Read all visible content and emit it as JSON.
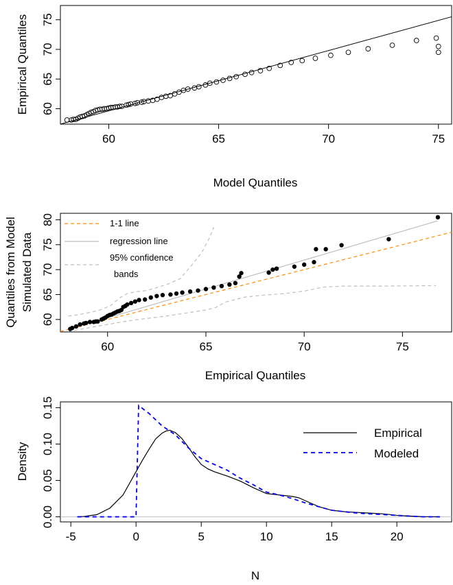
{
  "chart_data": [
    {
      "type": "scatter",
      "xlabel": "Model Quantiles",
      "ylabel": "Empirical Quantiles",
      "xlim": [
        57.8,
        75.6
      ],
      "ylim": [
        57.4,
        77.4
      ],
      "xticks": [
        60,
        65,
        70,
        75
      ],
      "yticks": [
        60,
        65,
        70,
        75
      ],
      "marker": "open-circle",
      "points": [
        [
          58.1,
          58.1
        ],
        [
          58.3,
          58.1
        ],
        [
          58.4,
          58.2
        ],
        [
          58.5,
          58.2
        ],
        [
          58.6,
          58.4
        ],
        [
          58.7,
          58.6
        ],
        [
          58.8,
          58.7
        ],
        [
          58.9,
          58.8
        ],
        [
          59.0,
          59.0
        ],
        [
          59.1,
          59.2
        ],
        [
          59.2,
          59.4
        ],
        [
          59.3,
          59.5
        ],
        [
          59.4,
          59.7
        ],
        [
          59.5,
          59.8
        ],
        [
          59.6,
          59.9
        ],
        [
          59.7,
          59.9
        ],
        [
          59.8,
          60.0
        ],
        [
          59.9,
          60.0
        ],
        [
          60.0,
          60.1
        ],
        [
          60.1,
          60.2
        ],
        [
          60.2,
          60.2
        ],
        [
          60.3,
          60.3
        ],
        [
          60.4,
          60.3
        ],
        [
          60.5,
          60.4
        ],
        [
          60.6,
          60.4
        ],
        [
          60.8,
          60.6
        ],
        [
          60.9,
          60.7
        ],
        [
          61.0,
          60.8
        ],
        [
          61.2,
          60.9
        ],
        [
          61.3,
          61.0
        ],
        [
          61.5,
          61.1
        ],
        [
          61.6,
          61.2
        ],
        [
          61.8,
          61.3
        ],
        [
          62.0,
          61.4
        ],
        [
          62.2,
          61.6
        ],
        [
          62.4,
          61.9
        ],
        [
          62.6,
          62.1
        ],
        [
          62.8,
          62.2
        ],
        [
          63.0,
          62.5
        ],
        [
          63.2,
          62.8
        ],
        [
          63.4,
          63.1
        ],
        [
          63.6,
          63.3
        ],
        [
          63.9,
          63.5
        ],
        [
          64.1,
          63.7
        ],
        [
          64.4,
          64.0
        ],
        [
          64.6,
          64.3
        ],
        [
          64.9,
          64.5
        ],
        [
          65.2,
          64.8
        ],
        [
          65.5,
          65.1
        ],
        [
          65.8,
          65.4
        ],
        [
          66.2,
          65.8
        ],
        [
          66.5,
          66.1
        ],
        [
          66.9,
          66.4
        ],
        [
          67.3,
          66.8
        ],
        [
          67.8,
          67.3
        ],
        [
          68.3,
          67.8
        ],
        [
          68.8,
          68.1
        ],
        [
          69.4,
          68.5
        ],
        [
          70.1,
          69.0
        ],
        [
          70.9,
          69.5
        ],
        [
          71.8,
          70.1
        ],
        [
          72.9,
          70.7
        ],
        [
          74.0,
          71.5
        ],
        [
          74.9,
          71.9
        ],
        [
          75.0,
          70.5
        ],
        [
          75.0,
          69.5
        ]
      ],
      "fit_line": [
        [
          57.8,
          57.4
        ],
        [
          75.6,
          75.5
        ]
      ]
    },
    {
      "type": "scatter",
      "xlabel": "Empirical Quantiles",
      "ylabel_lines": [
        "Quantiles from Model",
        "Simulated Data"
      ],
      "xlim": [
        57.6,
        77.5
      ],
      "ylim": [
        57.5,
        81.3
      ],
      "xticks": [
        60,
        65,
        70,
        75
      ],
      "yticks": [
        60,
        65,
        70,
        75,
        80
      ],
      "marker": "filled-circle",
      "legend": {
        "position": "top-left",
        "entries": [
          {
            "label": "1-1 line",
            "color": "#ff8c00",
            "style": "dashed"
          },
          {
            "label": "regression line",
            "color": "#bebebe",
            "style": "solid"
          },
          {
            "label": "95% confidence",
            "color": "#bebebe",
            "style": "dashed"
          },
          {
            "label": "bands",
            "color": null,
            "style": "none"
          }
        ]
      },
      "points": [
        [
          58.1,
          58.1
        ],
        [
          58.2,
          58.3
        ],
        [
          58.4,
          58.6
        ],
        [
          58.6,
          59.0
        ],
        [
          58.8,
          59.2
        ],
        [
          58.9,
          59.3
        ],
        [
          59.1,
          59.5
        ],
        [
          59.3,
          59.5
        ],
        [
          59.4,
          59.6
        ],
        [
          59.5,
          59.6
        ],
        [
          59.7,
          60.0
        ],
        [
          59.8,
          60.2
        ],
        [
          59.9,
          60.4
        ],
        [
          60.0,
          60.7
        ],
        [
          60.1,
          60.9
        ],
        [
          60.2,
          61.0
        ],
        [
          60.3,
          61.2
        ],
        [
          60.4,
          61.4
        ],
        [
          60.5,
          61.6
        ],
        [
          60.6,
          61.7
        ],
        [
          60.7,
          61.9
        ],
        [
          60.8,
          62.5
        ],
        [
          60.9,
          62.7
        ],
        [
          61.0,
          63.0
        ],
        [
          61.2,
          63.3
        ],
        [
          61.4,
          63.6
        ],
        [
          61.6,
          63.9
        ],
        [
          61.9,
          64.0
        ],
        [
          62.2,
          64.4
        ],
        [
          62.5,
          64.7
        ],
        [
          62.8,
          64.9
        ],
        [
          63.2,
          65.0
        ],
        [
          63.5,
          65.2
        ],
        [
          63.8,
          65.4
        ],
        [
          64.2,
          65.6
        ],
        [
          64.6,
          65.8
        ],
        [
          65.0,
          66.1
        ],
        [
          65.4,
          66.4
        ],
        [
          65.8,
          66.7
        ],
        [
          66.2,
          67.0
        ],
        [
          66.5,
          67.3
        ],
        [
          66.7,
          68.6
        ],
        [
          66.8,
          69.3
        ],
        [
          68.2,
          69.4
        ],
        [
          68.4,
          70.0
        ],
        [
          68.6,
          70.2
        ],
        [
          69.5,
          70.6
        ],
        [
          70.0,
          71.0
        ],
        [
          70.5,
          71.5
        ],
        [
          70.6,
          74.1
        ],
        [
          71.1,
          74.1
        ],
        [
          71.9,
          74.9
        ],
        [
          74.3,
          76.1
        ],
        [
          76.8,
          80.5
        ]
      ],
      "one_to_one": [
        [
          57.6,
          57.6
        ],
        [
          77.5,
          77.5
        ]
      ],
      "regression": [
        [
          58.0,
          58.0
        ],
        [
          76.8,
          79.8
        ]
      ],
      "upper_band": [
        [
          58.0,
          60.7
        ],
        [
          58.6,
          61.0
        ],
        [
          59.2,
          61.5
        ],
        [
          59.7,
          62.0
        ],
        [
          60.2,
          62.9
        ],
        [
          60.6,
          64.3
        ],
        [
          61.0,
          65.2
        ],
        [
          61.5,
          65.6
        ],
        [
          62.0,
          65.8
        ],
        [
          63.0,
          67.0
        ],
        [
          63.7,
          68.2
        ],
        [
          64.3,
          71.0
        ],
        [
          64.8,
          73.5
        ],
        [
          65.2,
          76.5
        ],
        [
          65.4,
          78.5
        ]
      ],
      "lower_band": [
        [
          58.0,
          57.6
        ],
        [
          59.0,
          58.3
        ],
        [
          60.0,
          59.0
        ],
        [
          61.0,
          59.7
        ],
        [
          62.0,
          60.2
        ],
        [
          63.0,
          60.7
        ],
        [
          64.0,
          61.3
        ],
        [
          65.0,
          61.9
        ],
        [
          65.5,
          62.4
        ],
        [
          66.0,
          63.5
        ],
        [
          67.0,
          64.5
        ],
        [
          68.0,
          64.9
        ],
        [
          69.0,
          65.2
        ],
        [
          70.0,
          65.7
        ],
        [
          71.0,
          66.5
        ],
        [
          72.0,
          66.7
        ],
        [
          74.0,
          66.7
        ],
        [
          76.7,
          66.8
        ]
      ]
    },
    {
      "type": "line",
      "xlabel": "N",
      "ylabel": "Density",
      "xlim": [
        -5.8,
        24.2
      ],
      "ylim": [
        -0.007,
        0.158
      ],
      "xticks": [
        -5,
        0,
        5,
        10,
        15,
        20
      ],
      "yticks": [
        0.0,
        0.05,
        0.1,
        0.15
      ],
      "ytick_labels": [
        "0.00",
        "0.05",
        "0.10",
        "0.15"
      ],
      "legend": {
        "position": "top-right"
      },
      "series": [
        {
          "name": "Empirical",
          "color": "#000000",
          "style": "solid",
          "points": [
            [
              -4.5,
              0.0
            ],
            [
              -4.0,
              0.0005
            ],
            [
              -3.0,
              0.003
            ],
            [
              -2.0,
              0.012
            ],
            [
              -1.0,
              0.03
            ],
            [
              0.0,
              0.062
            ],
            [
              0.5,
              0.078
            ],
            [
              1.0,
              0.093
            ],
            [
              1.5,
              0.107
            ],
            [
              2.0,
              0.115
            ],
            [
              2.3,
              0.118
            ],
            [
              2.6,
              0.119
            ],
            [
              3.0,
              0.116
            ],
            [
              3.5,
              0.108
            ],
            [
              4.0,
              0.096
            ],
            [
              4.5,
              0.083
            ],
            [
              5.0,
              0.072
            ],
            [
              5.5,
              0.066
            ],
            [
              6.0,
              0.062
            ],
            [
              7.0,
              0.056
            ],
            [
              8.0,
              0.049
            ],
            [
              9.0,
              0.04
            ],
            [
              10.0,
              0.032
            ],
            [
              11.0,
              0.03
            ],
            [
              12.0,
              0.028
            ],
            [
              12.5,
              0.026
            ],
            [
              13.0,
              0.022
            ],
            [
              14.0,
              0.014
            ],
            [
              15.0,
              0.009
            ],
            [
              16.0,
              0.007
            ],
            [
              17.0,
              0.006
            ],
            [
              18.0,
              0.005
            ],
            [
              19.0,
              0.004
            ],
            [
              20.0,
              0.002
            ],
            [
              21.0,
              0.001
            ],
            [
              22.0,
              0.0002
            ],
            [
              23.3,
              0.0
            ]
          ]
        },
        {
          "name": "Modeled",
          "color": "#0000ff",
          "style": "dashed",
          "points": [
            [
              -4.5,
              0.0
            ],
            [
              -2.0,
              0.0
            ],
            [
              0.0,
              0.0
            ],
            [
              0.2,
              0.153
            ],
            [
              1.0,
              0.142
            ],
            [
              2.0,
              0.125
            ],
            [
              3.0,
              0.113
            ],
            [
              4.0,
              0.095
            ],
            [
              5.0,
              0.08
            ],
            [
              6.0,
              0.072
            ],
            [
              7.0,
              0.064
            ],
            [
              8.0,
              0.053
            ],
            [
              9.0,
              0.044
            ],
            [
              10.0,
              0.034
            ],
            [
              11.0,
              0.03
            ],
            [
              12.0,
              0.025
            ],
            [
              13.0,
              0.019
            ],
            [
              14.0,
              0.014
            ],
            [
              15.0,
              0.009
            ],
            [
              16.0,
              0.007
            ],
            [
              17.0,
              0.005
            ],
            [
              18.0,
              0.004
            ],
            [
              19.0,
              0.003
            ],
            [
              20.0,
              0.002
            ],
            [
              21.0,
              0.001
            ],
            [
              22.0,
              0.0
            ],
            [
              23.3,
              0.0
            ]
          ]
        }
      ],
      "hline": 0.0,
      "hline_color": "#bebebe"
    }
  ]
}
